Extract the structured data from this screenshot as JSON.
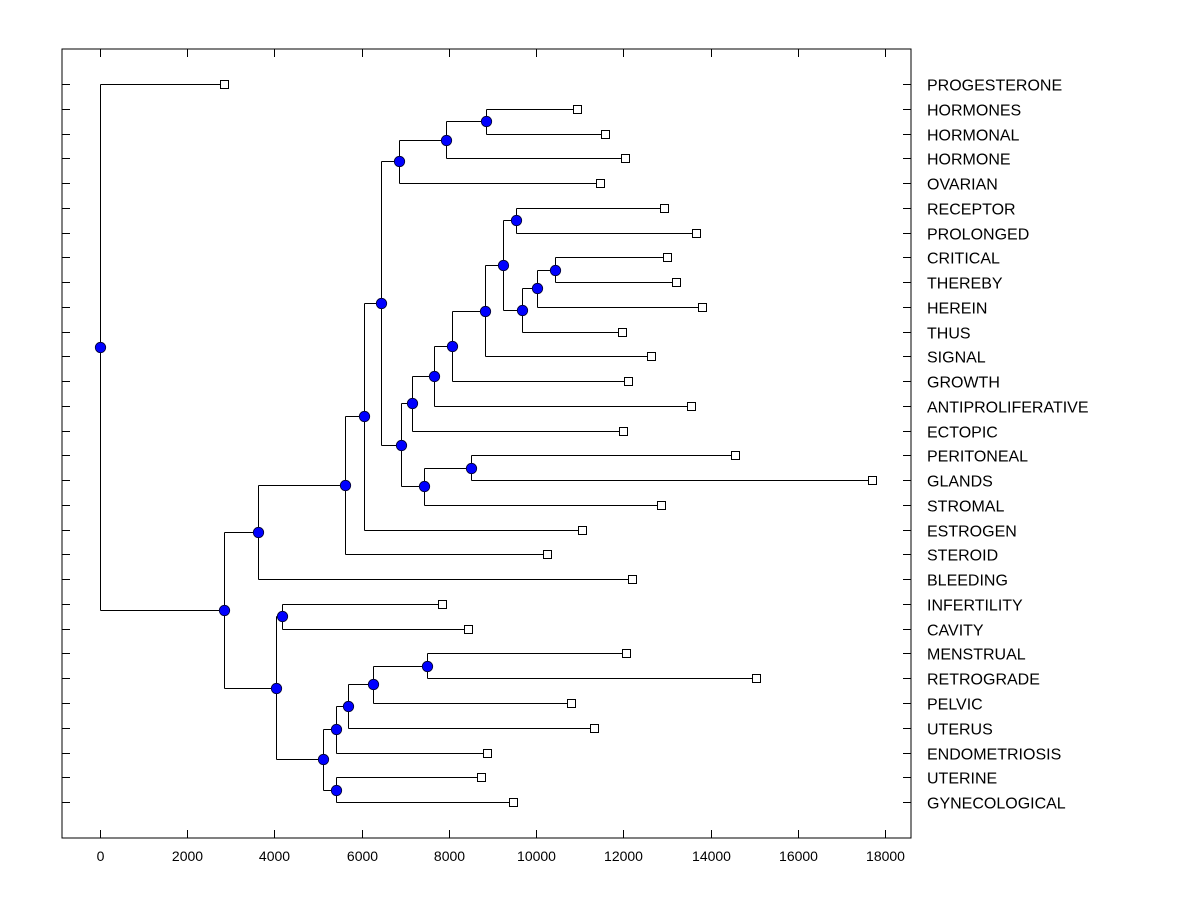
{
  "chart_data": {
    "type": "dendrogram",
    "title": "",
    "xlabel": "",
    "ylabel": "",
    "xlim": [
      -860,
      18650
    ],
    "xticks": [
      0,
      2000,
      4000,
      6000,
      8000,
      10000,
      12000,
      14000,
      16000,
      18000
    ],
    "xtick_labels": [
      "0",
      "2000",
      "4000",
      "6000",
      "8000",
      "10000",
      "12000",
      "14000",
      "16000",
      "18000"
    ],
    "grid": false,
    "legend": null,
    "colors": {
      "internal_node": "#0000ff",
      "leaf_node": "#ffffff",
      "line": "#000000"
    },
    "leaves": [
      {
        "label": "PROGESTERONE",
        "value": 2840
      },
      {
        "label": "HORMONES",
        "value": 10940
      },
      {
        "label": "HORMONAL",
        "value": 11580
      },
      {
        "label": "HORMONE",
        "value": 12040
      },
      {
        "label": "OVARIAN",
        "value": 11470
      },
      {
        "label": "RECEPTOR",
        "value": 12930
      },
      {
        "label": "PROLONGED",
        "value": 13670
      },
      {
        "label": "CRITICAL",
        "value": 13000
      },
      {
        "label": "THEREBY",
        "value": 13210
      },
      {
        "label": "HEREIN",
        "value": 13800
      },
      {
        "label": "THUS",
        "value": 11970
      },
      {
        "label": "SIGNAL",
        "value": 12630
      },
      {
        "label": "GROWTH",
        "value": 12110
      },
      {
        "label": "ANTIPROLIFERATIVE",
        "value": 13550
      },
      {
        "label": "ECTOPIC",
        "value": 11990
      },
      {
        "label": "PERITONEAL",
        "value": 14560
      },
      {
        "label": "GLANDS",
        "value": 17700
      },
      {
        "label": "STROMAL",
        "value": 12860
      },
      {
        "label": "ESTROGEN",
        "value": 11050
      },
      {
        "label": "STEROID",
        "value": 10250
      },
      {
        "label": "BLEEDING",
        "value": 12200
      },
      {
        "label": "INFERTILITY",
        "value": 7840
      },
      {
        "label": "CAVITY",
        "value": 8440
      },
      {
        "label": "MENSTRUAL",
        "value": 12060
      },
      {
        "label": "RETROGRADE",
        "value": 15040
      },
      {
        "label": "PELVIC",
        "value": 10800
      },
      {
        "label": "UTERUS",
        "value": 11330
      },
      {
        "label": "ENDOMETRIOSIS",
        "value": 8870
      },
      {
        "label": "UTERINE",
        "value": 8740
      },
      {
        "label": "GYNECOLOGICAL",
        "value": 9470
      }
    ],
    "tree": {
      "value": 0,
      "children": [
        "PROGESTERONE",
        {
          "value": 2840,
          "children": [
            {
              "value": 3620,
              "children": [
                {
                  "value": 5620,
                  "children": [
                    {
                      "value": 6050,
                      "children": [
                        {
                          "value": 6440,
                          "children": [
                            {
                              "value": 6860,
                              "children": [
                                {
                                  "value": 7930,
                                  "children": [
                                    {
                                      "value": 8850,
                                      "children": [
                                        "HORMONES",
                                        "HORMONAL"
                                      ]
                                    },
                                    "HORMONE"
                                  ]
                                },
                                "OVARIAN"
                              ]
                            },
                            {
                              "value": 6900,
                              "children": [
                                {
                                  "value": 7150,
                                  "children": [
                                    {
                                      "value": 7660,
                                      "children": [
                                        {
                                          "value": 8070,
                                          "children": [
                                            {
                                              "value": 8830,
                                              "children": [
                                                {
                                                  "value": 9240,
                                                  "children": [
                                                    {
                                                      "value": 9540,
                                                      "children": [
                                                        "RECEPTOR",
                                                        "PROLONGED"
                                                      ]
                                                    },
                                                    {
                                                      "value": 9680,
                                                      "children": [
                                                        {
                                                          "value": 10020,
                                                          "children": [
                                                            {
                                                              "value": 10430,
                                                              "children": [
                                                                "CRITICAL",
                                                                "THEREBY"
                                                              ]
                                                            },
                                                            "HEREIN"
                                                          ]
                                                        },
                                                        "THUS"
                                                      ]
                                                    }
                                                  ]
                                                },
                                                "SIGNAL"
                                              ]
                                            },
                                            "GROWTH"
                                          ]
                                        },
                                        "ANTIPROLIFERATIVE"
                                      ]
                                    },
                                    "ECTOPIC"
                                  ]
                                },
                                {
                                  "value": 7430,
                                  "children": [
                                    {
                                      "value": 8510,
                                      "children": [
                                        "PERITONEAL",
                                        "GLANDS"
                                      ]
                                    },
                                    "STROMAL"
                                  ]
                                }
                              ]
                            }
                          ]
                        },
                        "ESTROGEN"
                      ]
                    },
                    "STEROID"
                  ]
                },
                "BLEEDING"
              ]
            },
            {
              "value": 4040,
              "children": [
                {
                  "value": 4170,
                  "children": [
                    "INFERTILITY",
                    "CAVITY"
                  ]
                },
                {
                  "value": 5110,
                  "children": [
                    {
                      "value": 5410,
                      "children": [
                        {
                          "value": 5690,
                          "children": [
                            {
                              "value": 6260,
                              "children": [
                                {
                                  "value": 7500,
                                  "children": [
                                    "MENSTRUAL",
                                    "RETROGRADE"
                                  ]
                                },
                                "PELVIC"
                              ]
                            },
                            "UTERUS"
                          ]
                        },
                        "ENDOMETRIOSIS"
                      ]
                    },
                    {
                      "value": 5410,
                      "children": [
                        "UTERINE",
                        "GYNECOLOGICAL"
                      ]
                    }
                  ]
                }
              ]
            }
          ]
        }
      ]
    }
  }
}
